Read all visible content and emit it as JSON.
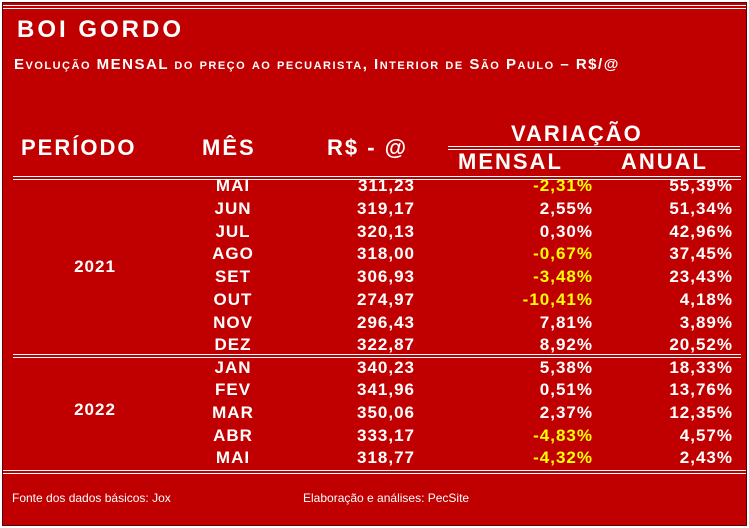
{
  "header": {
    "title": "BOI GORDO",
    "subtitle": "Evolução MENSAL do preço ao pecuarista, Interior de São Paulo – R$/@"
  },
  "columns": {
    "periodo": "PERÍODO",
    "mes": "MÊS",
    "rs": "R$ - @",
    "variacao": "VARIAÇÃO",
    "mensal": "MENSAL",
    "anual": "ANUAL"
  },
  "years": [
    "2021",
    "2022"
  ],
  "rows": [
    {
      "mes": "MAI",
      "rs": "311,23",
      "mensal": "-2,31%",
      "anual": "55,39%"
    },
    {
      "mes": "JUN",
      "rs": "319,17",
      "mensal": "2,55%",
      "anual": "51,34%"
    },
    {
      "mes": "JUL",
      "rs": "320,13",
      "mensal": "0,30%",
      "anual": "42,96%"
    },
    {
      "mes": "AGO",
      "rs": "318,00",
      "mensal": "-0,67%",
      "anual": "37,45%"
    },
    {
      "mes": "SET",
      "rs": "306,93",
      "mensal": "-3,48%",
      "anual": "23,43%"
    },
    {
      "mes": "OUT",
      "rs": "274,97",
      "mensal": "-10,41%",
      "anual": "4,18%"
    },
    {
      "mes": "NOV",
      "rs": "296,43",
      "mensal": "7,81%",
      "anual": "3,89%"
    },
    {
      "mes": "DEZ",
      "rs": "322,87",
      "mensal": "8,92%",
      "anual": "20,52%"
    },
    {
      "mes": "JAN",
      "rs": "340,23",
      "mensal": "5,38%",
      "anual": "18,33%"
    },
    {
      "mes": "FEV",
      "rs": "341,96",
      "mensal": "0,51%",
      "anual": "13,76%"
    },
    {
      "mes": "MAR",
      "rs": "350,06",
      "mensal": "2,37%",
      "anual": "12,35%"
    },
    {
      "mes": "ABR",
      "rs": "333,17",
      "mensal": "-4,83%",
      "anual": "4,57%"
    },
    {
      "mes": "MAI",
      "rs": "318,77",
      "mensal": "-4,32%",
      "anual": "2,43%"
    }
  ],
  "footer": {
    "source": "Fonte dos dados básicos: Jox",
    "credits": "Elaboração e análises: PecSite"
  },
  "colors": {
    "background": "#c00000",
    "text": "#ffffff",
    "negative": "#ffff00"
  }
}
